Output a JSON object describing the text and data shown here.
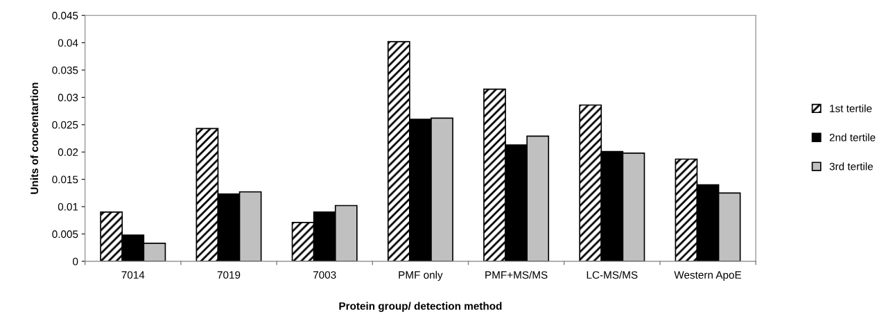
{
  "chart_data": {
    "type": "bar",
    "xlabel": "Protein group/ detection method",
    "ylabel": "Units of concentartion",
    "categories": [
      "7014",
      "7019",
      "7003",
      "PMF only",
      "PMF+MS/MS",
      "LC-MS/MS",
      "Western ApoE"
    ],
    "series": [
      {
        "name": "1st tertile",
        "color": "#000000",
        "values": [
          0.009,
          0.0243,
          0.0071,
          0.0402,
          0.0315,
          0.0286,
          0.0187
        ]
      },
      {
        "name": "2nd tertile",
        "color": "#000000",
        "values": [
          0.0048,
          0.0123,
          0.009,
          0.026,
          0.0213,
          0.0201,
          0.014
        ]
      },
      {
        "name": "3rd tertile",
        "color": "#c0c0c0",
        "values": [
          0.0033,
          0.0127,
          0.0102,
          0.0262,
          0.0229,
          0.0198,
          0.0125
        ]
      }
    ],
    "ylim": [
      0,
      0.045
    ],
    "yticks": [
      0,
      0.005,
      0.01,
      0.015,
      0.02,
      0.025,
      0.03,
      0.035,
      0.04,
      0.045
    ],
    "grid": false,
    "legend": "right"
  }
}
